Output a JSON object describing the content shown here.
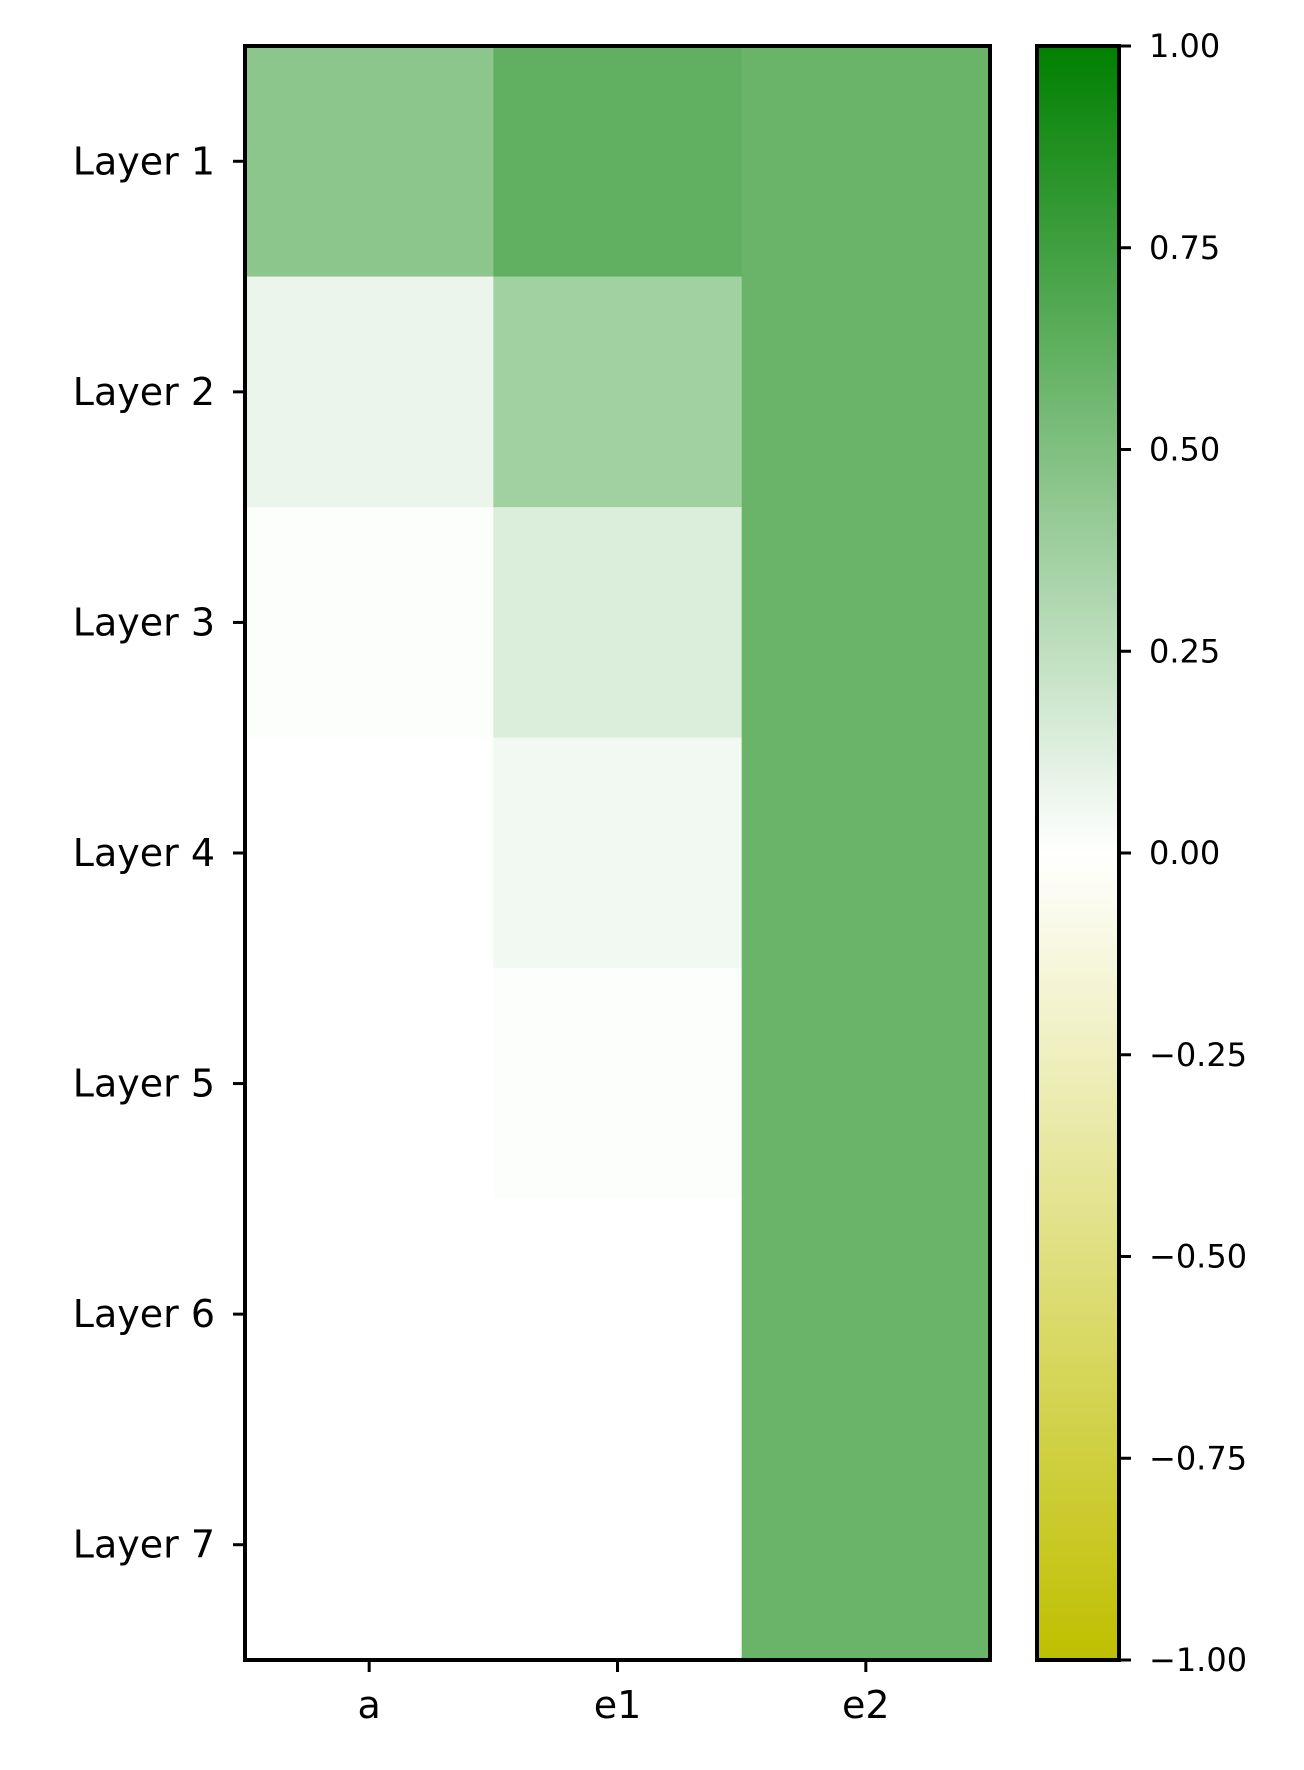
{
  "chart_data": {
    "type": "heatmap",
    "title": "",
    "xlabel": "",
    "ylabel": "",
    "x_categories": [
      "a",
      "e1",
      "e2"
    ],
    "y_categories": [
      "Layer 1",
      "Layer 2",
      "Layer 3",
      "Layer 4",
      "Layer 5",
      "Layer 6",
      "Layer 7"
    ],
    "values": [
      [
        0.45,
        0.62,
        0.59
      ],
      [
        0.08,
        0.37,
        0.59
      ],
      [
        0.01,
        0.14,
        0.59
      ],
      [
        0.0,
        0.05,
        0.59
      ],
      [
        0.0,
        0.01,
        0.59
      ],
      [
        0.0,
        0.0,
        0.59
      ],
      [
        0.0,
        0.0,
        0.59
      ]
    ],
    "colorbar": {
      "range": [
        -1.0,
        1.0
      ],
      "ticks": [
        1.0,
        0.75,
        0.5,
        0.25,
        0.0,
        -0.25,
        -0.5,
        -0.75,
        -1.0
      ],
      "tick_labels": [
        "1.00",
        "0.75",
        "0.50",
        "0.25",
        "0.00",
        "−0.25",
        "−0.50",
        "−0.75",
        "−1.00"
      ],
      "colors": {
        "low": "#bfbf00",
        "mid": "#ffffff",
        "high": "#008000"
      }
    }
  }
}
